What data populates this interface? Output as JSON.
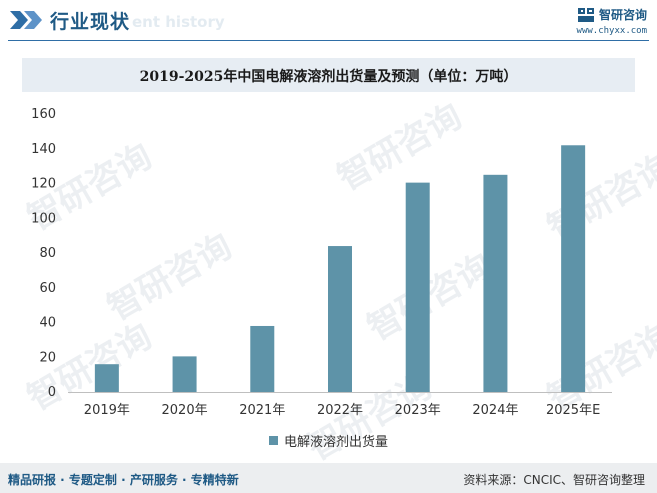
{
  "header": {
    "title": "行业现状",
    "subtitle_watermark": "ent history",
    "brand_name": "智研咨询",
    "brand_url": "www.chyxx.com"
  },
  "colors": {
    "bar": "#5e93a8",
    "accent": "#1f5a85",
    "band": "#e7edf3"
  },
  "watermark_text": "智研咨询",
  "chart_data": {
    "type": "bar",
    "title": "2019-2025年中国电解液溶剂出货量及预测（单位：万吨）",
    "categories": [
      "2019年",
      "2020年",
      "2021年",
      "2022年",
      "2023年",
      "2024年",
      "2025年E"
    ],
    "series": [
      {
        "name": "电解液溶剂出货量",
        "values": [
          16,
          20.5,
          38,
          84,
          120.5,
          125,
          142
        ]
      }
    ],
    "yticks": [
      0,
      20,
      40,
      60,
      80,
      100,
      120,
      140,
      160
    ],
    "ylim": [
      0,
      160
    ],
    "grid": false,
    "legend": "bottom"
  },
  "footer": {
    "left": "精品研报 · 专题定制 · 产研服务 · 专精特新",
    "right": "资料来源：CNCIC、智研咨询整理"
  }
}
